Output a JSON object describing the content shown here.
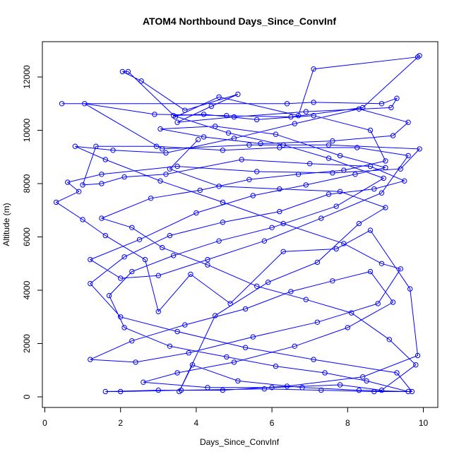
{
  "chart_data": {
    "type": "line",
    "title": "ATOM4 Northbound Days_Since_ConvInf",
    "xlabel": "Days_Since_ConvInf",
    "ylabel": "Altitude (m)",
    "xlim": [
      0,
      10
    ],
    "ylim": [
      0,
      12800
    ],
    "x_ticks": [
      "0",
      "2",
      "4",
      "6",
      "8",
      "10"
    ],
    "y_ticks": [
      "0",
      "2000",
      "4000",
      "6000",
      "8000",
      "10000",
      "12000"
    ],
    "grid": false,
    "legend": "none",
    "series_color": "#0000ff",
    "marker": "open-circle",
    "series": [
      {
        "values": [
          [
            0.45,
            11000
          ],
          [
            6.4,
            11000
          ],
          [
            7.1,
            11050
          ],
          [
            8.9,
            11000
          ],
          [
            9.3,
            11200
          ],
          [
            9.15,
            10850
          ],
          [
            6.9,
            10700
          ],
          [
            5.0,
            10500
          ],
          [
            3.5,
            10300
          ],
          [
            4.4,
            10900
          ],
          [
            5.1,
            11350
          ],
          [
            3.7,
            10750
          ],
          [
            2.55,
            11850
          ],
          [
            2.05,
            12200
          ],
          [
            2.2,
            12200
          ],
          [
            3.45,
            10500
          ],
          [
            4.6,
            11250
          ],
          [
            6.7,
            10550
          ],
          [
            7.1,
            12300
          ],
          [
            9.85,
            12750
          ],
          [
            9.9,
            12800
          ],
          [
            8.4,
            10850
          ],
          [
            6.5,
            10500
          ],
          [
            4.8,
            10550
          ],
          [
            2.9,
            10600
          ],
          [
            1.05,
            11000
          ],
          [
            3.1,
            9300
          ],
          [
            5.4,
            9450
          ],
          [
            7.5,
            9450
          ],
          [
            9.9,
            9300
          ],
          [
            9.4,
            8550
          ],
          [
            7.6,
            8400
          ],
          [
            5.6,
            8450
          ],
          [
            3.5,
            8650
          ],
          [
            1.5,
            8350
          ],
          [
            0.6,
            8050
          ],
          [
            0.9,
            7700
          ],
          [
            0.3,
            7300
          ],
          [
            1.0,
            6650
          ],
          [
            1.6,
            6050
          ],
          [
            2.65,
            5150
          ],
          [
            3.0,
            3200
          ],
          [
            3.85,
            4600
          ],
          [
            4.9,
            3500
          ],
          [
            6.3,
            5450
          ],
          [
            7.7,
            5550
          ],
          [
            8.6,
            6250
          ],
          [
            9.65,
            4050
          ],
          [
            9.85,
            1550
          ],
          [
            8.4,
            750
          ],
          [
            6.4,
            400
          ],
          [
            4.7,
            250
          ],
          [
            3.0,
            250
          ],
          [
            1.6,
            200
          ],
          [
            2.0,
            200
          ],
          [
            3.6,
            250
          ],
          [
            5.8,
            300
          ],
          [
            7.3,
            250
          ],
          [
            8.7,
            200
          ],
          [
            9.7,
            200
          ],
          [
            9.3,
            900
          ],
          [
            7.1,
            1400
          ],
          [
            5.3,
            1850
          ],
          [
            3.5,
            2450
          ],
          [
            2.0,
            3000
          ],
          [
            1.2,
            4250
          ],
          [
            2.1,
            5250
          ],
          [
            3.3,
            6050
          ],
          [
            4.7,
            6550
          ],
          [
            6.2,
            6950
          ],
          [
            7.5,
            7600
          ],
          [
            8.7,
            7800
          ],
          [
            9.5,
            8100
          ],
          [
            8.6,
            8650
          ],
          [
            7.0,
            8750
          ],
          [
            5.2,
            8900
          ],
          [
            3.2,
            8350
          ],
          [
            2.1,
            8250
          ],
          [
            1.5,
            8000
          ],
          [
            1.0,
            7950
          ],
          [
            1.35,
            9400
          ],
          [
            2.95,
            9400
          ],
          [
            4.7,
            9250
          ],
          [
            6.2,
            9350
          ],
          [
            8.25,
            9350
          ],
          [
            9.6,
            9050
          ],
          [
            8.9,
            7650
          ],
          [
            7.3,
            6700
          ],
          [
            5.8,
            5850
          ],
          [
            4.3,
            5150
          ],
          [
            3.0,
            4550
          ],
          [
            2.0,
            4450
          ],
          [
            1.2,
            5150
          ],
          [
            2.5,
            5900
          ],
          [
            4.0,
            6900
          ],
          [
            5.5,
            7550
          ],
          [
            6.9,
            7950
          ],
          [
            8.2,
            8350
          ],
          [
            9.0,
            8600
          ],
          [
            7.8,
            9050
          ],
          [
            6.1,
            9850
          ],
          [
            4.5,
            10150
          ],
          [
            3.05,
            10050
          ],
          [
            4.2,
            9750
          ],
          [
            5.7,
            9500
          ],
          [
            7.6,
            9600
          ],
          [
            9.2,
            9800
          ],
          [
            9.6,
            10300
          ],
          [
            8.3,
            10800
          ],
          [
            6.6,
            10250
          ],
          [
            5.0,
            9700
          ],
          [
            3.2,
            9150
          ],
          [
            1.8,
            9250
          ],
          [
            0.8,
            9400
          ],
          [
            1.6,
            8900
          ],
          [
            3.05,
            8100
          ],
          [
            4.7,
            7300
          ],
          [
            6.3,
            6500
          ],
          [
            7.9,
            5750
          ],
          [
            8.9,
            5000
          ],
          [
            9.4,
            4800
          ],
          [
            8.8,
            3500
          ],
          [
            7.2,
            2800
          ],
          [
            5.5,
            2250
          ],
          [
            3.8,
            1650
          ],
          [
            2.4,
            1300
          ],
          [
            1.2,
            1400
          ],
          [
            2.3,
            2100
          ],
          [
            3.7,
            2700
          ],
          [
            5.3,
            3300
          ],
          [
            6.5,
            3950
          ],
          [
            7.6,
            4350
          ],
          [
            8.6,
            4700
          ],
          [
            9.2,
            3550
          ],
          [
            8.0,
            2600
          ],
          [
            6.6,
            1900
          ],
          [
            5.0,
            1300
          ],
          [
            3.5,
            900
          ],
          [
            2.6,
            550
          ],
          [
            4.3,
            350
          ],
          [
            6.0,
            350
          ],
          [
            7.8,
            450
          ],
          [
            8.9,
            250
          ],
          [
            9.8,
            1200
          ],
          [
            9.1,
            2150
          ],
          [
            8.1,
            3150
          ],
          [
            6.9,
            3650
          ],
          [
            5.6,
            4150
          ],
          [
            4.3,
            4950
          ],
          [
            3.1,
            5600
          ],
          [
            2.3,
            6350
          ],
          [
            1.5,
            6700
          ],
          [
            2.8,
            7450
          ],
          [
            4.1,
            7750
          ],
          [
            5.4,
            8150
          ],
          [
            6.7,
            8350
          ],
          [
            7.9,
            8500
          ],
          [
            9.0,
            8850
          ],
          [
            8.6,
            10000
          ],
          [
            7.1,
            10550
          ],
          [
            5.6,
            10400
          ],
          [
            4.2,
            10600
          ],
          [
            3.4,
            10550
          ],
          [
            4.85,
            9900
          ],
          [
            6.3,
            9450
          ],
          [
            7.5,
            8950
          ],
          [
            8.95,
            8200
          ],
          [
            7.7,
            7150
          ],
          [
            6.0,
            6350
          ],
          [
            4.6,
            5850
          ],
          [
            3.4,
            5300
          ],
          [
            2.3,
            4700
          ],
          [
            1.7,
            3800
          ],
          [
            2.1,
            2600
          ],
          [
            3.3,
            1900
          ],
          [
            4.8,
            1500
          ],
          [
            6.1,
            1150
          ],
          [
            7.4,
            900
          ],
          [
            8.5,
            600
          ],
          [
            9.6,
            200
          ],
          [
            8.3,
            250
          ],
          [
            6.8,
            350
          ],
          [
            5.1,
            600
          ],
          [
            3.9,
            1200
          ],
          [
            3.55,
            200
          ],
          [
            4.5,
            3050
          ],
          [
            5.9,
            4300
          ],
          [
            7.2,
            5050
          ],
          [
            8.3,
            6500
          ],
          [
            9.0,
            7100
          ],
          [
            7.8,
            7700
          ],
          [
            6.2,
            7800
          ],
          [
            4.6,
            7900
          ],
          [
            3.3,
            8550
          ],
          [
            4.05,
            9650
          ]
        ]
      }
    ]
  }
}
